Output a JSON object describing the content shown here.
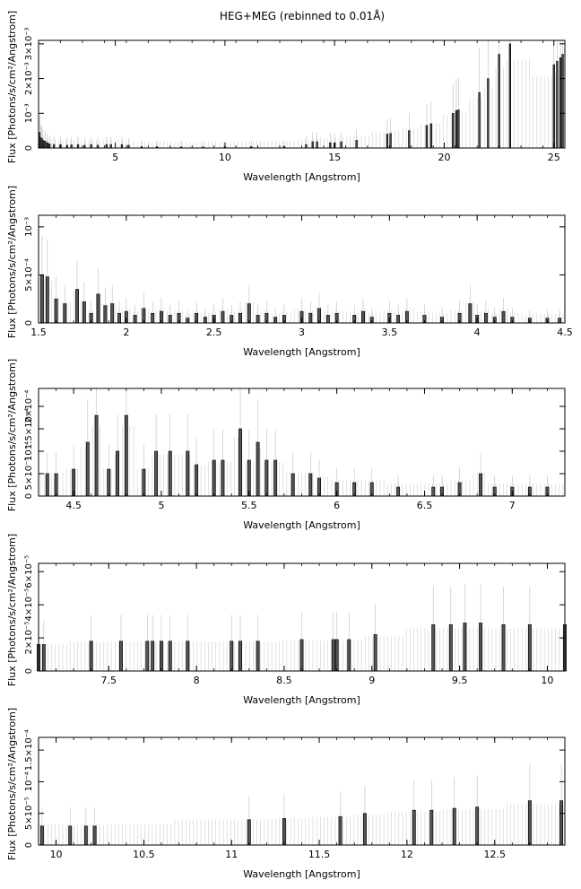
{
  "title": "HEG+MEG (rebinned to 0.01Å)",
  "chart_data": [
    {
      "type": "bar",
      "xlabel": "Wavelength [Angstrom]",
      "ylabel": "Flux [Photons/s/cm²/Angstrom]",
      "xlim": [
        1.5,
        25.5
      ],
      "ylim": [
        0,
        0.0031
      ],
      "xticks": [
        {
          "v": 5,
          "label": "5"
        },
        {
          "v": 10,
          "label": "10"
        },
        {
          "v": 15,
          "label": "15"
        },
        {
          "v": 20,
          "label": "20"
        },
        {
          "v": 25,
          "label": "25"
        }
      ],
      "yticks": [
        {
          "v": 0,
          "label": "0"
        },
        {
          "v": 0.001,
          "label": "10⁻³"
        },
        {
          "v": 0.002,
          "label": "2×10⁻³"
        },
        {
          "v": 0.003,
          "label": "3×10⁻³"
        }
      ],
      "points": [
        [
          1.55,
          0.00045
        ],
        [
          1.6,
          0.0003
        ],
        [
          1.65,
          0.00028
        ],
        [
          1.7,
          0.00022
        ],
        [
          1.8,
          0.0002
        ],
        [
          1.9,
          0.00015
        ],
        [
          2.0,
          0.00012
        ],
        [
          2.2,
          0.0001
        ],
        [
          2.5,
          0.0001
        ],
        [
          2.8,
          8e-05
        ],
        [
          3.0,
          9e-05
        ],
        [
          3.3,
          0.0001
        ],
        [
          3.6,
          8e-05
        ],
        [
          3.9,
          0.0001
        ],
        [
          4.2,
          8e-05
        ],
        [
          4.6,
          0.0001
        ],
        [
          4.8,
          0.0001
        ],
        [
          5.3,
          0.0001
        ],
        [
          5.6,
          8e-05
        ],
        [
          6.2,
          4e-05
        ],
        [
          6.9,
          4e-05
        ],
        [
          8.0,
          3e-05
        ],
        [
          9.0,
          3e-05
        ],
        [
          10.0,
          3e-05
        ],
        [
          11.2,
          4e-05
        ],
        [
          12.7,
          5e-05
        ],
        [
          13.7,
          0.0001
        ],
        [
          14.0,
          0.00018
        ],
        [
          14.2,
          0.00018
        ],
        [
          14.8,
          0.00015
        ],
        [
          15.0,
          0.00015
        ],
        [
          15.3,
          0.00018
        ],
        [
          16.0,
          0.00022
        ],
        [
          17.4,
          0.0004
        ],
        [
          17.55,
          0.00042
        ],
        [
          18.4,
          0.0005
        ],
        [
          19.2,
          0.00065
        ],
        [
          19.4,
          0.0007
        ],
        [
          20.4,
          0.001
        ],
        [
          20.55,
          0.00108
        ],
        [
          20.65,
          0.0011
        ],
        [
          21.6,
          0.0016
        ],
        [
          22.0,
          0.002
        ],
        [
          22.5,
          0.0027
        ],
        [
          23.0,
          0.003
        ],
        [
          25.0,
          0.0024
        ],
        [
          25.15,
          0.0025
        ],
        [
          25.3,
          0.0026
        ],
        [
          25.4,
          0.0027
        ]
      ]
    },
    {
      "type": "bar",
      "xlabel": "Wavelength [Angstrom]",
      "ylabel": "Flux [Photons/s/cm²/Angstrom]",
      "xlim": [
        1.5,
        4.5
      ],
      "ylim": [
        0,
        0.00112
      ],
      "xticks": [
        {
          "v": 1.5,
          "label": "1.5"
        },
        {
          "v": 2,
          "label": "2"
        },
        {
          "v": 2.5,
          "label": "2.5"
        },
        {
          "v": 3,
          "label": "3"
        },
        {
          "v": 3.5,
          "label": "3.5"
        },
        {
          "v": 4,
          "label": "4"
        },
        {
          "v": 4.5,
          "label": "4.5"
        }
      ],
      "yticks": [
        {
          "v": 0,
          "label": "0"
        },
        {
          "v": 0.0005,
          "label": "5×10⁻⁴"
        },
        {
          "v": 0.001,
          "label": "10⁻³"
        }
      ],
      "points": [
        [
          1.52,
          0.0005
        ],
        [
          1.55,
          0.00048
        ],
        [
          1.6,
          0.00025
        ],
        [
          1.65,
          0.0002
        ],
        [
          1.72,
          0.00035
        ],
        [
          1.76,
          0.00022
        ],
        [
          1.8,
          0.0001
        ],
        [
          1.84,
          0.0003
        ],
        [
          1.88,
          0.00018
        ],
        [
          1.92,
          0.0002
        ],
        [
          1.96,
          0.0001
        ],
        [
          2.0,
          0.00012
        ],
        [
          2.05,
          8e-05
        ],
        [
          2.1,
          0.00015
        ],
        [
          2.15,
          0.0001
        ],
        [
          2.2,
          0.00012
        ],
        [
          2.25,
          8e-05
        ],
        [
          2.3,
          0.0001
        ],
        [
          2.35,
          5e-05
        ],
        [
          2.4,
          0.0001
        ],
        [
          2.45,
          6e-05
        ],
        [
          2.5,
          8e-05
        ],
        [
          2.55,
          0.00012
        ],
        [
          2.6,
          8e-05
        ],
        [
          2.65,
          0.0001
        ],
        [
          2.7,
          0.0002
        ],
        [
          2.75,
          8e-05
        ],
        [
          2.8,
          0.0001
        ],
        [
          2.85,
          6e-05
        ],
        [
          2.9,
          8e-05
        ],
        [
          3.0,
          0.00012
        ],
        [
          3.05,
          0.0001
        ],
        [
          3.1,
          0.00015
        ],
        [
          3.15,
          8e-05
        ],
        [
          3.2,
          0.0001
        ],
        [
          3.3,
          8e-05
        ],
        [
          3.35,
          0.00012
        ],
        [
          3.4,
          6e-05
        ],
        [
          3.5,
          0.0001
        ],
        [
          3.55,
          8e-05
        ],
        [
          3.6,
          0.00012
        ],
        [
          3.7,
          8e-05
        ],
        [
          3.8,
          6e-05
        ],
        [
          3.9,
          0.0001
        ],
        [
          3.96,
          0.0002
        ],
        [
          4.0,
          8e-05
        ],
        [
          4.05,
          0.0001
        ],
        [
          4.1,
          6e-05
        ],
        [
          4.15,
          0.00012
        ],
        [
          4.2,
          6e-05
        ],
        [
          4.3,
          5e-05
        ],
        [
          4.4,
          5e-05
        ],
        [
          4.47,
          5e-05
        ]
      ]
    },
    {
      "type": "bar",
      "xlabel": "Wavelength [Angstrom]",
      "ylabel": "Flux [Photons/s/cm²/Angstrom]",
      "xlim": [
        4.3,
        7.3
      ],
      "ylim": [
        0,
        0.00024
      ],
      "xticks": [
        {
          "v": 4.5,
          "label": "4.5"
        },
        {
          "v": 5,
          "label": "5"
        },
        {
          "v": 5.5,
          "label": "5.5"
        },
        {
          "v": 6,
          "label": "6"
        },
        {
          "v": 6.5,
          "label": "6.5"
        },
        {
          "v": 7,
          "label": "7"
        }
      ],
      "yticks": [
        {
          "v": 0,
          "label": "0"
        },
        {
          "v": 5e-05,
          "label": "5×10⁻⁵"
        },
        {
          "v": 0.0001,
          "label": "10⁻⁴"
        },
        {
          "v": 0.00015,
          "label": "1.5×10⁻⁴"
        },
        {
          "v": 0.0002,
          "label": "2×10⁻⁴"
        }
      ],
      "points": [
        [
          4.35,
          5e-05
        ],
        [
          4.4,
          5e-05
        ],
        [
          4.5,
          6e-05
        ],
        [
          4.58,
          0.00012
        ],
        [
          4.63,
          0.00018
        ],
        [
          4.7,
          6e-05
        ],
        [
          4.75,
          0.0001
        ],
        [
          4.8,
          0.00018
        ],
        [
          4.9,
          6e-05
        ],
        [
          4.97,
          0.0001
        ],
        [
          5.05,
          0.0001
        ],
        [
          5.15,
          0.0001
        ],
        [
          5.2,
          7e-05
        ],
        [
          5.3,
          8e-05
        ],
        [
          5.35,
          8e-05
        ],
        [
          5.45,
          0.00015
        ],
        [
          5.5,
          8e-05
        ],
        [
          5.55,
          0.00012
        ],
        [
          5.6,
          8e-05
        ],
        [
          5.65,
          8e-05
        ],
        [
          5.75,
          5e-05
        ],
        [
          5.85,
          5e-05
        ],
        [
          5.9,
          4e-05
        ],
        [
          6.0,
          3e-05
        ],
        [
          6.1,
          3e-05
        ],
        [
          6.2,
          3e-05
        ],
        [
          6.35,
          2e-05
        ],
        [
          6.55,
          2e-05
        ],
        [
          6.6,
          2e-05
        ],
        [
          6.7,
          3e-05
        ],
        [
          6.82,
          5e-05
        ],
        [
          6.9,
          2e-05
        ],
        [
          7.0,
          2e-05
        ],
        [
          7.1,
          2e-05
        ],
        [
          7.2,
          2e-05
        ]
      ]
    },
    {
      "type": "bar",
      "xlabel": "Wavelength [Angstrom]",
      "ylabel": "Flux [Photons/s/cm²/Angstrom]",
      "xlim": [
        7.1,
        10.1
      ],
      "ylim": [
        0,
        6.5e-05
      ],
      "xticks": [
        {
          "v": 7.5,
          "label": "7.5"
        },
        {
          "v": 8,
          "label": "8"
        },
        {
          "v": 8.5,
          "label": "8.5"
        },
        {
          "v": 9,
          "label": "9"
        },
        {
          "v": 9.5,
          "label": "9.5"
        },
        {
          "v": 10,
          "label": "10"
        }
      ],
      "yticks": [
        {
          "v": 0,
          "label": "0"
        },
        {
          "v": 2e-05,
          "label": "2×10⁻⁵"
        },
        {
          "v": 4e-05,
          "label": "4×10⁻⁵"
        },
        {
          "v": 6e-05,
          "label": "6×10⁻⁵"
        }
      ],
      "points": [
        [
          7.1,
          1.6e-05
        ],
        [
          7.13,
          1.6e-05
        ],
        [
          7.4,
          1.8e-05
        ],
        [
          7.57,
          1.8e-05
        ],
        [
          7.72,
          1.8e-05
        ],
        [
          7.75,
          1.8e-05
        ],
        [
          7.8,
          1.8e-05
        ],
        [
          7.85,
          1.8e-05
        ],
        [
          7.95,
          1.8e-05
        ],
        [
          8.2,
          1.8e-05
        ],
        [
          8.25,
          1.8e-05
        ],
        [
          8.35,
          1.8e-05
        ],
        [
          8.6,
          1.9e-05
        ],
        [
          8.78,
          1.9e-05
        ],
        [
          8.8,
          1.9e-05
        ],
        [
          8.87,
          1.9e-05
        ],
        [
          9.02,
          2.2e-05
        ],
        [
          9.35,
          2.8e-05
        ],
        [
          9.45,
          2.8e-05
        ],
        [
          9.53,
          2.9e-05
        ],
        [
          9.62,
          2.9e-05
        ],
        [
          9.75,
          2.8e-05
        ],
        [
          9.9,
          2.8e-05
        ],
        [
          10.1,
          2.8e-05
        ]
      ]
    },
    {
      "type": "bar",
      "xlabel": "Wavelength [Angstrom]",
      "ylabel": "Flux [Photons/s/cm²/Angstrom]",
      "xlim": [
        9.9,
        12.9
      ],
      "ylim": [
        0,
        0.00017
      ],
      "xticks": [
        {
          "v": 10,
          "label": "10"
        },
        {
          "v": 10.5,
          "label": "10.5"
        },
        {
          "v": 11,
          "label": "11"
        },
        {
          "v": 11.5,
          "label": "11.5"
        },
        {
          "v": 12,
          "label": "12"
        },
        {
          "v": 12.5,
          "label": "12.5"
        }
      ],
      "yticks": [
        {
          "v": 0,
          "label": "0"
        },
        {
          "v": 5e-05,
          "label": "5×10⁻⁵"
        },
        {
          "v": 0.0001,
          "label": "10⁻⁴"
        },
        {
          "v": 0.00015,
          "label": "1.5×10⁻⁴"
        }
      ],
      "points": [
        [
          9.92,
          3e-05
        ],
        [
          10.08,
          3e-05
        ],
        [
          10.17,
          3e-05
        ],
        [
          10.22,
          3e-05
        ],
        [
          11.1,
          4e-05
        ],
        [
          11.3,
          4.2e-05
        ],
        [
          11.62,
          4.5e-05
        ],
        [
          11.76,
          5e-05
        ],
        [
          12.04,
          5.5e-05
        ],
        [
          12.14,
          5.5e-05
        ],
        [
          12.27,
          5.8e-05
        ],
        [
          12.4,
          6e-05
        ],
        [
          12.7,
          7e-05
        ],
        [
          12.88,
          7e-05
        ]
      ]
    }
  ]
}
